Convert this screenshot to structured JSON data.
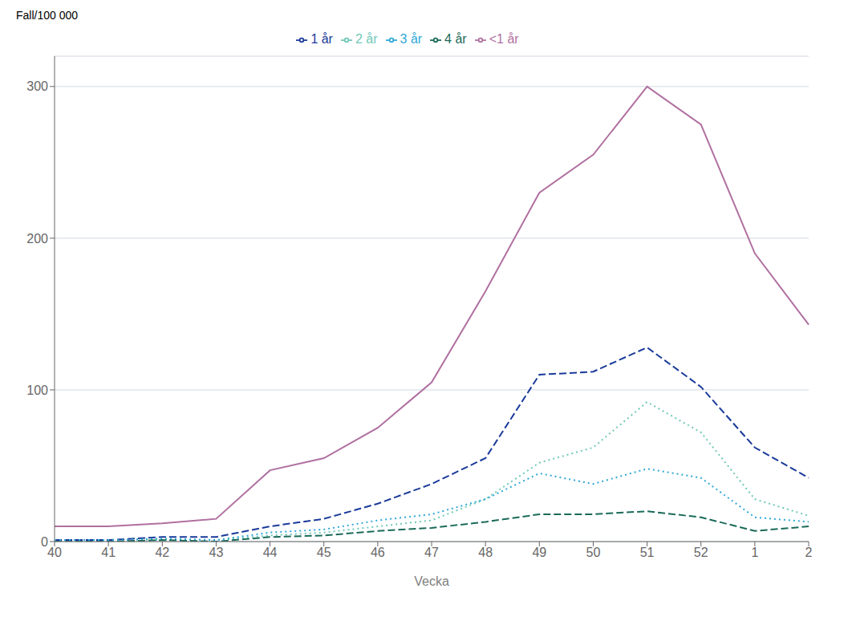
{
  "chart_data": {
    "type": "line",
    "ylabel": "Fall/100 000",
    "xlabel": "Vecka",
    "categories": [
      "40",
      "41",
      "42",
      "43",
      "44",
      "45",
      "46",
      "47",
      "48",
      "49",
      "50",
      "51",
      "52",
      "1",
      "2"
    ],
    "series": [
      {
        "name": "<1 år",
        "color": "#b070a0",
        "line_style": "solid",
        "values": [
          10,
          10,
          12,
          15,
          47,
          55,
          75,
          105,
          165,
          230,
          255,
          300,
          275,
          190,
          143
        ]
      },
      {
        "name": "1 år",
        "color": "#1a3a9a",
        "line_style": "dashed",
        "values": [
          1,
          1,
          3,
          3,
          10,
          15,
          25,
          38,
          55,
          110,
          112,
          128,
          102,
          62,
          42
        ]
      },
      {
        "name": "2 år",
        "color": "#70c8b8",
        "line_style": "dotted",
        "values": [
          1,
          1,
          1,
          1,
          4,
          6,
          10,
          14,
          28,
          52,
          62,
          92,
          72,
          28,
          17
        ]
      },
      {
        "name": "3 år",
        "color": "#30a8d8",
        "line_style": "dotted",
        "values": [
          1,
          1,
          2,
          1,
          6,
          8,
          14,
          18,
          28,
          45,
          38,
          48,
          42,
          16,
          13
        ]
      },
      {
        "name": "4 år",
        "color": "#1a6a5a",
        "line_style": "dashed",
        "values": [
          0,
          0,
          1,
          0,
          3,
          4,
          7,
          9,
          13,
          18,
          18,
          20,
          16,
          7,
          10
        ]
      }
    ],
    "ylim": [
      0,
      320
    ],
    "yticks": [
      0,
      100,
      200,
      300
    ],
    "grid": true,
    "legend": "top"
  }
}
